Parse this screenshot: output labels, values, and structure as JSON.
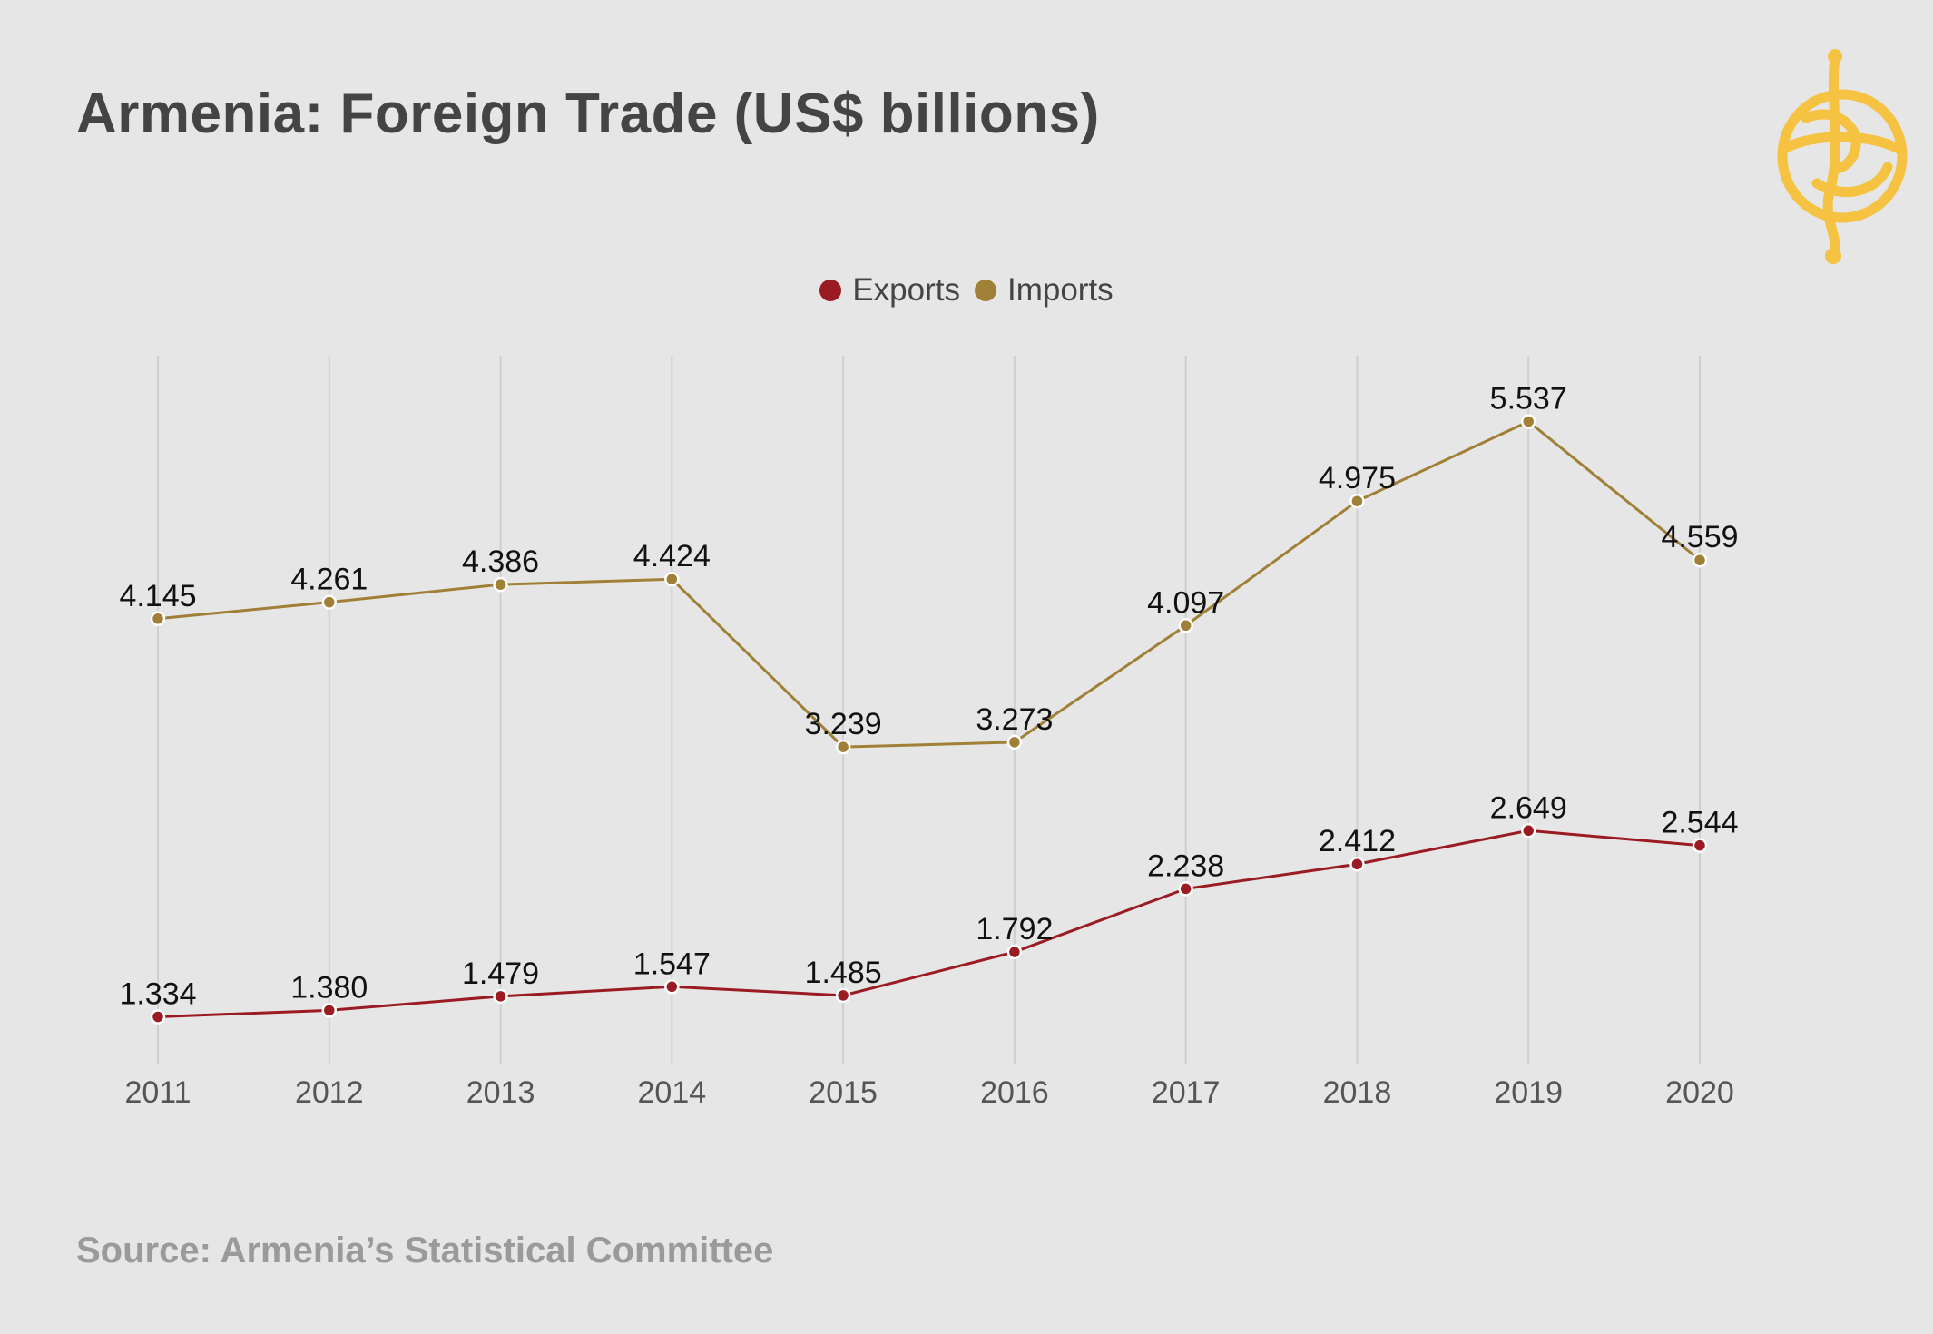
{
  "header": {
    "title": "Armenia: Foreign Trade (US$ billions)"
  },
  "footer": {
    "source": "Source: Armenia’s Statistical Committee"
  },
  "logo": {
    "icon": "armenian-mirror-logo-icon",
    "color": "#f5c242"
  },
  "chart_data": {
    "type": "line",
    "title": "Armenia: Foreign Trade (US$ billions)",
    "x": [
      "2011",
      "2012",
      "2013",
      "2014",
      "2015",
      "2016",
      "2017",
      "2018",
      "2019",
      "2020"
    ],
    "series": [
      {
        "name": "Exports",
        "color": "#9b1b23",
        "values": [
          1.334,
          1.38,
          1.479,
          1.547,
          1.485,
          1.792,
          2.238,
          2.412,
          2.649,
          2.544
        ],
        "labels": [
          "1.334",
          "1.380",
          "1.479",
          "1.547",
          "1.485",
          "1.792",
          "2.238",
          "2.412",
          "2.649",
          "2.544"
        ]
      },
      {
        "name": "Imports",
        "color": "#a08036",
        "values": [
          4.145,
          4.261,
          4.386,
          4.424,
          3.239,
          3.273,
          4.097,
          4.975,
          5.537,
          4.559
        ],
        "labels": [
          "4.145",
          "4.261",
          "4.386",
          "4.424",
          "3.239",
          "3.273",
          "4.097",
          "4.975",
          "5.537",
          "4.559"
        ]
      }
    ],
    "xlabel": "",
    "ylabel": "",
    "ylim": [
      1.0,
      6.0
    ],
    "grid": "vertical",
    "legend": "top-center"
  }
}
